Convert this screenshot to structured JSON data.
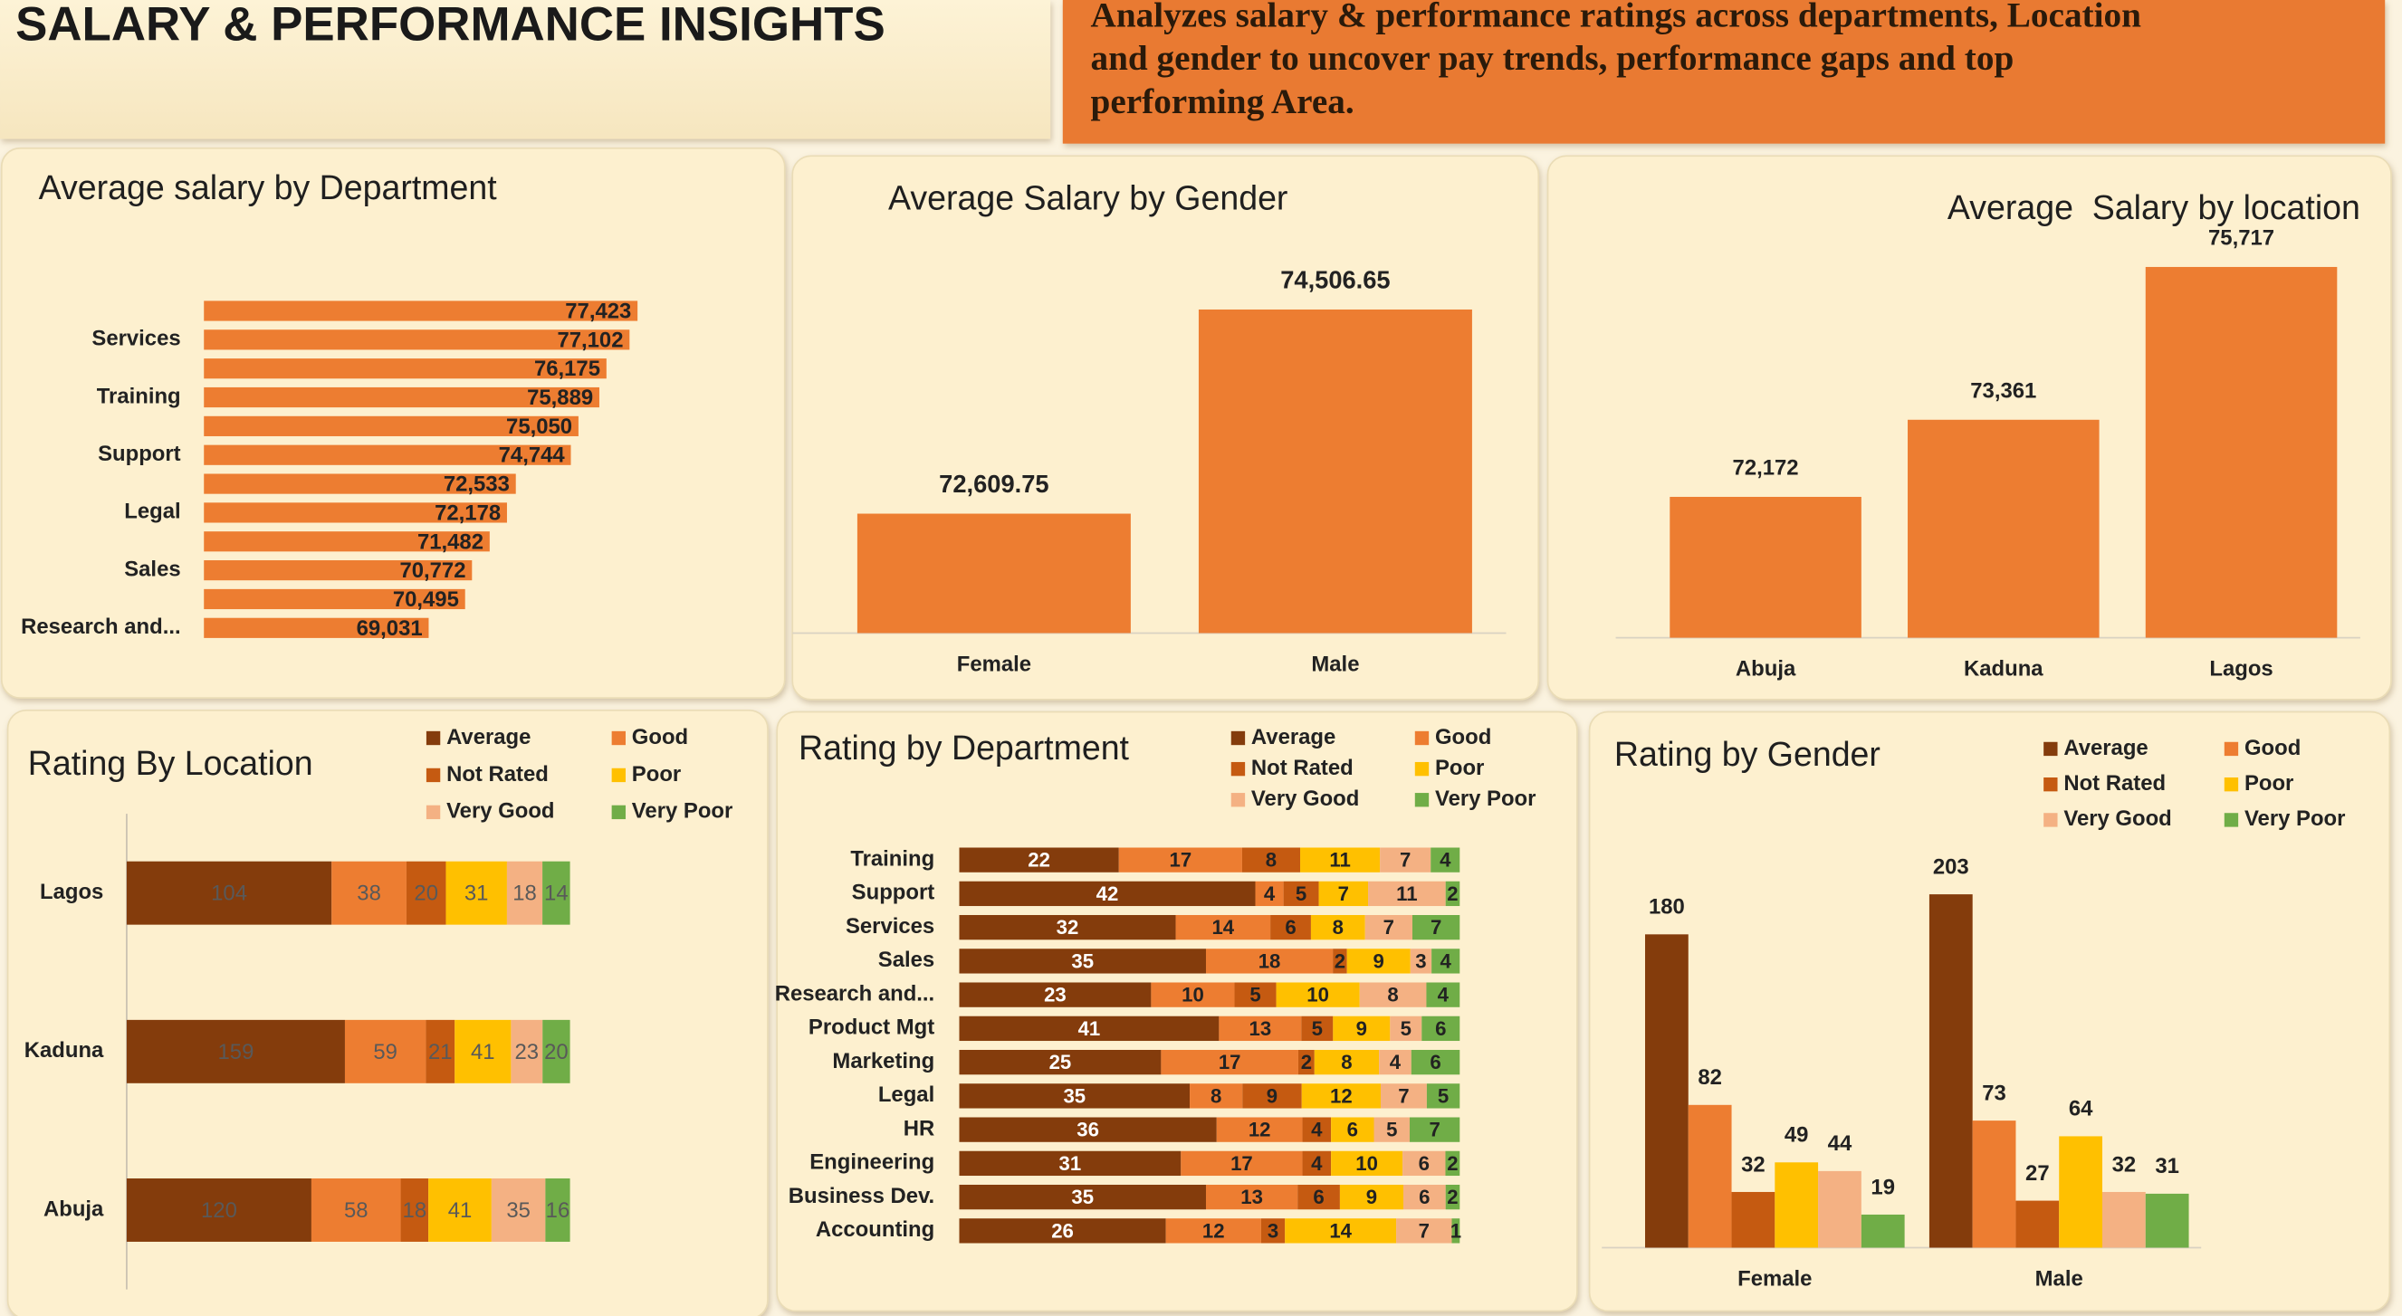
{
  "header": {
    "title": "SALARY & PERFORMANCE INSIGHTS",
    "description": [
      "Analyzes salary & performance ratings across departments, Location",
      "and gender to uncover pay trends, performance gaps and top",
      "performing Area."
    ]
  },
  "chart_data": [
    {
      "type": "bar",
      "orientation": "horizontal",
      "title": "Average salary by Department",
      "categories": [
        null,
        "Services",
        null,
        "Training",
        null,
        "Support",
        null,
        "Legal",
        null,
        "Sales",
        null,
        "Research and..."
      ],
      "values": [
        77423,
        77102,
        76175,
        75889,
        75050,
        74744,
        72533,
        72178,
        71482,
        70772,
        70495,
        69031
      ],
      "value_labels": [
        "77,423",
        "77,102",
        "76,175",
        "75,889",
        "75,050",
        "74,744",
        "72,533",
        "72,178",
        "71,482",
        "70,772",
        "70,495",
        "69,031"
      ],
      "color": "#ed7d31",
      "xlim": [
        60000,
        78000
      ]
    },
    {
      "type": "bar",
      "orientation": "vertical",
      "title": "Average Salary by Gender",
      "categories": [
        "Female",
        "Male"
      ],
      "values": [
        72609.75,
        74506.65
      ],
      "value_labels": [
        "72,609.75",
        "74,506.65"
      ],
      "color": "#ed7d31",
      "ylim": [
        71500,
        74800
      ]
    },
    {
      "type": "bar",
      "orientation": "vertical",
      "title": "Average  Salary by location",
      "categories": [
        "Abuja",
        "Kaduna",
        "Lagos"
      ],
      "values": [
        72172,
        73361,
        75717
      ],
      "value_labels": [
        "72,172",
        "73,361",
        "75,717"
      ],
      "color": "#ed7d31",
      "ylim": [
        70000,
        76000
      ]
    },
    {
      "type": "bar",
      "orientation": "horizontal",
      "stacked": "percent",
      "title": "Rating By Location",
      "categories": [
        "Lagos",
        "Kaduna",
        "Abuja"
      ],
      "series": [
        {
          "name": "Average",
          "color": "#843c0c",
          "values": [
            104,
            159,
            120
          ]
        },
        {
          "name": "Good",
          "color": "#ed7d31",
          "values": [
            38,
            59,
            58
          ]
        },
        {
          "name": "Not Rated",
          "color": "#c55a11",
          "values": [
            20,
            21,
            18
          ]
        },
        {
          "name": "Poor",
          "color": "#ffc000",
          "values": [
            31,
            41,
            41
          ]
        },
        {
          "name": "Very Good",
          "color": "#f4b183",
          "values": [
            18,
            23,
            35
          ]
        },
        {
          "name": "Very Poor",
          "color": "#70ad47",
          "values": [
            14,
            20,
            16
          ]
        }
      ]
    },
    {
      "type": "bar",
      "orientation": "horizontal",
      "stacked": "percent",
      "title": "Rating by Department",
      "categories": [
        "Training",
        "Support",
        "Services",
        "Sales",
        "Research and...",
        "Product Mgt",
        "Marketing",
        "Legal",
        "HR",
        "Engineering",
        "Business Dev.",
        "Accounting"
      ],
      "series": [
        {
          "name": "Average",
          "color": "#843c0c",
          "values": [
            22,
            42,
            32,
            35,
            23,
            41,
            25,
            35,
            36,
            31,
            35,
            26
          ]
        },
        {
          "name": "Good",
          "color": "#ed7d31",
          "values": [
            17,
            4,
            14,
            18,
            10,
            13,
            17,
            8,
            12,
            17,
            13,
            12
          ]
        },
        {
          "name": "Not Rated",
          "color": "#c55a11",
          "values": [
            8,
            5,
            6,
            2,
            5,
            5,
            2,
            9,
            4,
            4,
            6,
            3
          ]
        },
        {
          "name": "Poor",
          "color": "#ffc000",
          "values": [
            11,
            7,
            8,
            9,
            10,
            9,
            8,
            12,
            6,
            10,
            9,
            14
          ]
        },
        {
          "name": "Very Good",
          "color": "#f4b183",
          "values": [
            7,
            11,
            7,
            3,
            8,
            5,
            4,
            7,
            5,
            6,
            6,
            7
          ]
        },
        {
          "name": "Very Poor",
          "color": "#70ad47",
          "values": [
            4,
            2,
            7,
            4,
            4,
            6,
            6,
            5,
            7,
            2,
            2,
            1
          ]
        }
      ]
    },
    {
      "type": "bar",
      "orientation": "vertical",
      "title": "Rating by Gender",
      "categories": [
        "Female",
        "Male"
      ],
      "ylim": [
        0,
        220
      ],
      "series": [
        {
          "name": "Average",
          "color": "#843c0c",
          "values": [
            180,
            203
          ]
        },
        {
          "name": "Good",
          "color": "#ed7d31",
          "values": [
            82,
            73
          ]
        },
        {
          "name": "Not Rated",
          "color": "#c55a11",
          "values": [
            32,
            27
          ]
        },
        {
          "name": "Poor",
          "color": "#ffc000",
          "values": [
            49,
            64
          ]
        },
        {
          "name": "Very Good",
          "color": "#f4b183",
          "values": [
            44,
            32
          ]
        },
        {
          "name": "Very Poor",
          "color": "#70ad47",
          "values": [
            19,
            31
          ]
        }
      ]
    }
  ]
}
